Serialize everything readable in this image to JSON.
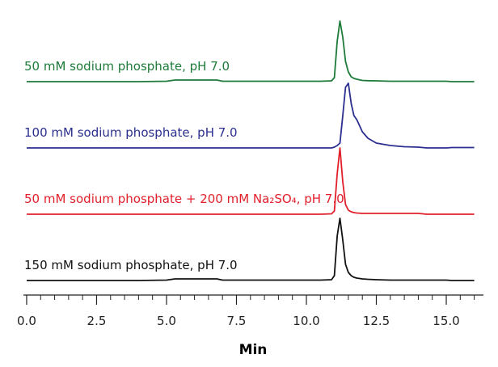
{
  "chart_data": {
    "type": "line",
    "x_label": "Min",
    "x": [
      0,
      1,
      2,
      3,
      4,
      5,
      5.3,
      6,
      6.8,
      7,
      8,
      9,
      10,
      10.5,
      10.9,
      11,
      11.1,
      11.2,
      11.3,
      11.4,
      11.5,
      11.6,
      11.7,
      11.8,
      12,
      12.2,
      12.5,
      13,
      13.5,
      14,
      14.3,
      15,
      15.2,
      16
    ],
    "series": [
      {
        "name": "50 mM sodium phosphate, pH 7.0",
        "color": "#1e7b3a",
        "values": [
          0,
          0,
          0,
          0,
          0,
          0.5,
          2,
          2,
          2,
          0.5,
          0.5,
          0.5,
          0.5,
          0.5,
          1,
          5,
          50,
          75,
          55,
          25,
          12,
          6,
          4,
          3,
          1.5,
          1.2,
          1,
          0.5,
          0.5,
          0.5,
          0.5,
          0.5,
          0,
          0
        ]
      },
      {
        "name": "100 mM sodium phosphate, pH 7.0",
        "color": "#2b2f8f",
        "values": [
          0,
          0,
          0,
          0,
          0,
          0,
          0,
          0,
          0,
          0,
          0,
          0,
          0,
          0,
          0,
          1,
          3,
          6,
          40,
          75,
          80,
          55,
          40,
          35,
          20,
          12,
          6,
          3,
          1.5,
          1,
          0,
          0,
          0.5,
          0.5
        ]
      },
      {
        "name": "50 mM sodium phosphate + 200 mM Na₂SO₄, pH 7.0",
        "color": "#e2202c",
        "values": [
          0,
          0,
          0,
          0,
          0,
          0,
          0,
          0,
          0,
          0,
          0,
          0,
          0,
          0,
          0.5,
          4,
          50,
          82,
          40,
          12,
          5,
          3,
          2,
          1.5,
          1,
          1,
          1,
          1,
          1,
          1,
          0,
          0,
          0,
          0
        ]
      },
      {
        "name": "150 mM sodium phosphate, pH 7.0",
        "color": "#111111",
        "values": [
          0,
          0,
          0,
          0,
          0,
          0.5,
          2,
          2,
          2,
          0.5,
          0.5,
          0.5,
          0.5,
          0.5,
          1,
          6,
          55,
          77,
          50,
          20,
          10,
          6,
          4,
          3,
          2,
          1.5,
          1,
          0.5,
          0.5,
          0.5,
          0.5,
          0.5,
          0,
          0
        ]
      }
    ],
    "xlim": [
      -0.1,
      16.3
    ],
    "xticks": [
      {
        "value": 0,
        "label": "0.0"
      },
      2.5,
      {
        "value": 5,
        "label": "5.0"
      },
      7.5,
      {
        "value": 10,
        "label": "10.0"
      },
      12.5,
      {
        "value": 15,
        "label": "15.0"
      }
    ],
    "xminorticks": [
      0.5,
      1,
      1.5,
      2,
      3,
      3.5,
      4,
      4.5,
      5.5,
      6,
      6.5,
      7,
      8,
      8.5,
      9,
      9.5,
      10.5,
      11,
      11.5,
      12,
      13,
      13.5,
      14,
      14.5,
      15.5,
      16
    ]
  }
}
